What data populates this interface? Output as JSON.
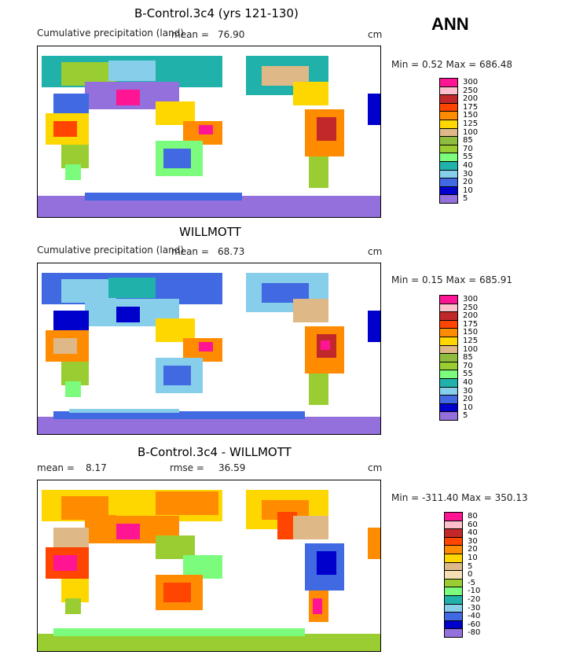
{
  "header": {
    "season": "ANN"
  },
  "panels": [
    {
      "title": "B-Control.3c4 (yrs 121-130)",
      "left_label": "Cumulative precipitation (land)",
      "mean_label": "mean =",
      "mean_value": "76.90",
      "rmse_label": "",
      "rmse_value": "",
      "unit": "cm",
      "minmax": "Min =    0.52 Max = 686.48",
      "colorbar": {
        "labels": [
          "300",
          "250",
          "200",
          "175",
          "150",
          "125",
          "100",
          "85",
          "70",
          "55",
          "40",
          "30",
          "20",
          "10",
          "5"
        ],
        "colors": [
          "#ff1493",
          "#ffc0cb",
          "#c0282a",
          "#ff4500",
          "#ff8c00",
          "#ffd700",
          "#deb887",
          "#8fbc3f",
          "#9acd32",
          "#7cfc7c",
          "#20b2aa",
          "#87ceeb",
          "#4169e1",
          "#0000cd",
          "#9370db"
        ]
      }
    },
    {
      "title": "WILLMOTT",
      "left_label": "Cumulative precipitation (land)",
      "mean_label": "mean =",
      "mean_value": "68.73",
      "rmse_label": "",
      "rmse_value": "",
      "unit": "cm",
      "minmax": "Min =    0.15 Max = 685.91",
      "colorbar": {
        "labels": [
          "300",
          "250",
          "200",
          "175",
          "150",
          "125",
          "100",
          "85",
          "70",
          "55",
          "40",
          "30",
          "20",
          "10",
          "5"
        ],
        "colors": [
          "#ff1493",
          "#ffc0cb",
          "#c0282a",
          "#ff4500",
          "#ff8c00",
          "#ffd700",
          "#deb887",
          "#8fbc3f",
          "#9acd32",
          "#7cfc7c",
          "#20b2aa",
          "#87ceeb",
          "#4169e1",
          "#0000cd",
          "#9370db"
        ]
      }
    },
    {
      "title": "B-Control.3c4 - WILLMOTT",
      "left_label": "",
      "mean_label": "mean =",
      "mean_value": "8.17",
      "rmse_label": "rmse =",
      "rmse_value": "36.59",
      "unit": "cm",
      "minmax": "Min = -311.40 Max = 350.13",
      "colorbar": {
        "labels": [
          "80",
          "60",
          "40",
          "30",
          "20",
          "10",
          "5",
          "0",
          "-5",
          "-10",
          "-20",
          "-30",
          "-40",
          "-60",
          "-80"
        ],
        "colors": [
          "#ff1493",
          "#ffc0cb",
          "#c0282a",
          "#ff4500",
          "#ff8c00",
          "#ffd700",
          "#deb887",
          "#f5deb3",
          "#9acd32",
          "#7cfc7c",
          "#20b2aa",
          "#87ceeb",
          "#4169e1",
          "#0000cd",
          "#9370db"
        ]
      }
    }
  ]
}
